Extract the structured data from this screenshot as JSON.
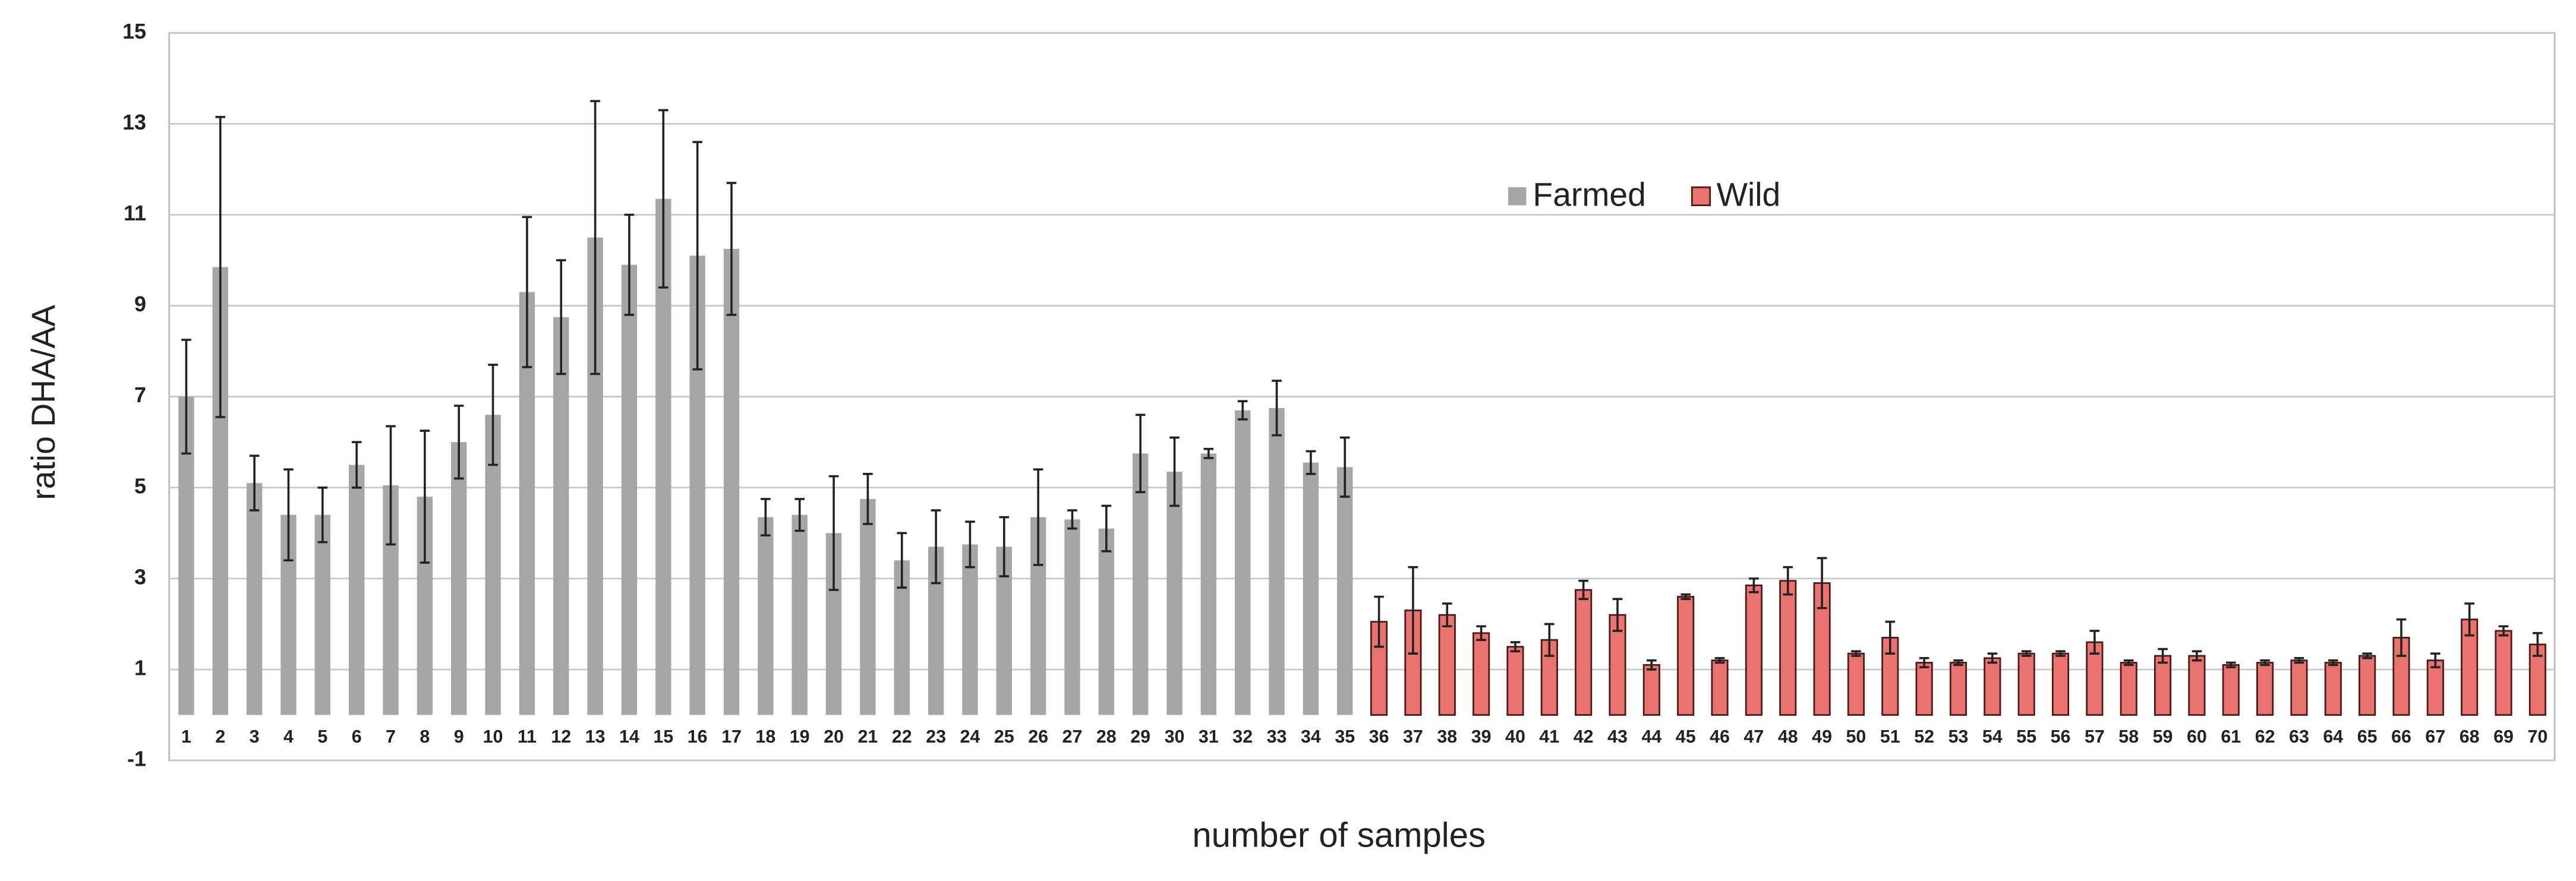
{
  "chart_data": {
    "type": "bar",
    "y_label": "ratio DHA/AA",
    "x_label": "number of samples",
    "categories": [
      "1",
      "2",
      "3",
      "4",
      "5",
      "6",
      "7",
      "8",
      "9",
      "10",
      "11",
      "12",
      "13",
      "14",
      "15",
      "16",
      "17",
      "18",
      "19",
      "20",
      "21",
      "22",
      "23",
      "24",
      "25",
      "26",
      "27",
      "28",
      "29",
      "30",
      "31",
      "32",
      "33",
      "34",
      "35",
      "36",
      "37",
      "38",
      "39",
      "40",
      "41",
      "42",
      "43",
      "44",
      "45",
      "46",
      "47",
      "48",
      "49",
      "50",
      "51",
      "52",
      "53",
      "54",
      "55",
      "56",
      "57",
      "58",
      "59",
      "60",
      "61",
      "62",
      "63",
      "64",
      "65",
      "66",
      "67",
      "68",
      "69",
      "70"
    ],
    "series": [
      {
        "name": "Farmed",
        "color": "#a6a6a6",
        "values": [
          7.0,
          9.85,
          5.1,
          4.4,
          4.4,
          5.5,
          5.05,
          4.8,
          6.0,
          6.6,
          9.3,
          8.75,
          10.5,
          9.9,
          11.35,
          10.1,
          10.25,
          4.35,
          4.4,
          4.0,
          4.75,
          3.4,
          3.7,
          3.75,
          3.7,
          4.35,
          4.3,
          4.1,
          5.75,
          5.35,
          5.75,
          6.7,
          6.75,
          5.55,
          5.45,
          null,
          null,
          null,
          null,
          null,
          null,
          null,
          null,
          null,
          null,
          null,
          null,
          null,
          null,
          null,
          null,
          null,
          null,
          null,
          null,
          null,
          null,
          null,
          null,
          null,
          null,
          null,
          null,
          null,
          null,
          null,
          null,
          null,
          null,
          null
        ],
        "errors": [
          1.25,
          3.3,
          0.6,
          1.0,
          0.6,
          0.5,
          1.3,
          1.45,
          0.8,
          1.1,
          1.65,
          1.25,
          3.0,
          1.1,
          1.95,
          2.5,
          1.45,
          0.4,
          0.35,
          1.25,
          0.55,
          0.6,
          0.8,
          0.5,
          0.65,
          1.05,
          0.2,
          0.5,
          0.85,
          0.75,
          0.1,
          0.2,
          0.6,
          0.25,
          0.65,
          null,
          null,
          null,
          null,
          null,
          null,
          null,
          null,
          null,
          null,
          null,
          null,
          null,
          null,
          null,
          null,
          null,
          null,
          null,
          null,
          null,
          null,
          null,
          null,
          null,
          null,
          null,
          null,
          null,
          null,
          null,
          null,
          null,
          null,
          null
        ]
      },
      {
        "name": "Wild",
        "color": "#e8736f",
        "values": [
          null,
          null,
          null,
          null,
          null,
          null,
          null,
          null,
          null,
          null,
          null,
          null,
          null,
          null,
          null,
          null,
          null,
          null,
          null,
          null,
          null,
          null,
          null,
          null,
          null,
          null,
          null,
          null,
          null,
          null,
          null,
          null,
          null,
          null,
          null,
          2.05,
          2.3,
          2.2,
          1.8,
          1.5,
          1.65,
          2.75,
          2.2,
          1.1,
          2.6,
          1.2,
          2.85,
          2.95,
          2.9,
          1.35,
          1.7,
          1.15,
          1.15,
          1.25,
          1.35,
          1.35,
          1.6,
          1.15,
          1.3,
          1.3,
          1.1,
          1.15,
          1.2,
          1.15,
          1.3,
          1.7,
          1.2,
          2.1,
          1.85,
          1.55
        ],
        "errors": [
          null,
          null,
          null,
          null,
          null,
          null,
          null,
          null,
          null,
          null,
          null,
          null,
          null,
          null,
          null,
          null,
          null,
          null,
          null,
          null,
          null,
          null,
          null,
          null,
          null,
          null,
          null,
          null,
          null,
          null,
          null,
          null,
          null,
          null,
          null,
          0.55,
          0.95,
          0.25,
          0.15,
          0.1,
          0.35,
          0.2,
          0.35,
          0.1,
          0.05,
          0.05,
          0.15,
          0.3,
          0.55,
          0.05,
          0.35,
          0.1,
          0.05,
          0.1,
          0.05,
          0.05,
          0.25,
          0.05,
          0.15,
          0.1,
          0.05,
          0.05,
          0.05,
          0.05,
          0.05,
          0.4,
          0.15,
          0.35,
          0.1,
          0.25
        ]
      }
    ],
    "ylim": [
      -1,
      15
    ],
    "yticks": [
      -1,
      1,
      3,
      5,
      7,
      9,
      11,
      13,
      15
    ],
    "grid": true
  }
}
